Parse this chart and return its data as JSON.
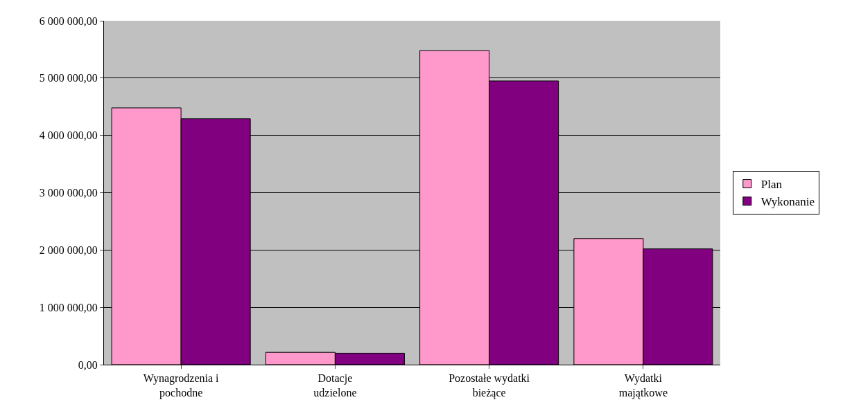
{
  "chart_data": {
    "type": "bar",
    "categories": [
      "Wynagrodzenia i pochodne",
      "Dotacje udzielone",
      "Pozostałe wydatki bieżące",
      "Wydatki majątkowe"
    ],
    "series": [
      {
        "name": "Plan",
        "color": "#ff99cc",
        "values": [
          4480000,
          215000,
          5480000,
          2200000
        ]
      },
      {
        "name": "Wykonanie",
        "color": "#800080",
        "values": [
          4290000,
          200000,
          4950000,
          2020000
        ]
      }
    ],
    "ylim": [
      0,
      6000000
    ],
    "yticks": [
      {
        "value": 0,
        "label": "0,00"
      },
      {
        "value": 1000000,
        "label": "1 000 000,00"
      },
      {
        "value": 2000000,
        "label": "2 000 000,00"
      },
      {
        "value": 3000000,
        "label": "3 000 000,00"
      },
      {
        "value": 4000000,
        "label": "4 000 000,00"
      },
      {
        "value": 5000000,
        "label": "5 000 000,00"
      },
      {
        "value": 6000000,
        "label": "6 000 000,00"
      }
    ],
    "grid": "y",
    "legend": "right"
  }
}
